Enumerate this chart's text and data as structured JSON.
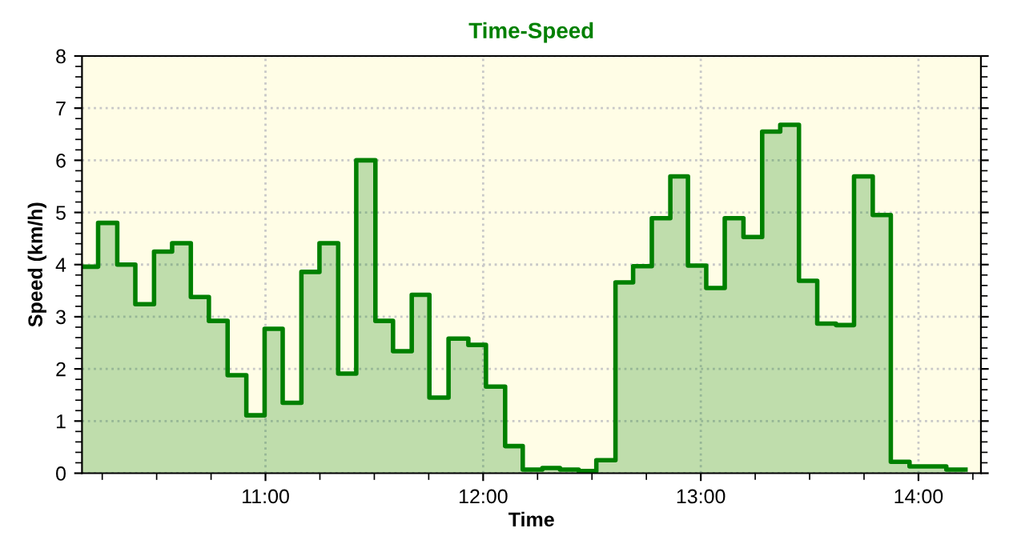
{
  "chart_data": {
    "type": "area",
    "title": "Time-Speed",
    "xlabel": "Time",
    "ylabel": "Speed (km/h)",
    "x": [
      10.157,
      10.231,
      10.231,
      10.319,
      10.319,
      10.402,
      10.402,
      10.488,
      10.488,
      10.571,
      10.571,
      10.657,
      10.657,
      10.74,
      10.74,
      10.826,
      10.826,
      10.912,
      10.912,
      10.996,
      10.996,
      11.079,
      11.079,
      11.165,
      11.165,
      11.248,
      11.248,
      11.334,
      11.334,
      11.417,
      11.417,
      11.505,
      11.505,
      11.586,
      11.586,
      11.672,
      11.672,
      11.753,
      11.753,
      11.841,
      11.841,
      11.932,
      11.932,
      12.013,
      12.013,
      12.101,
      12.101,
      12.182,
      12.182,
      12.272,
      12.272,
      12.353,
      12.353,
      12.439,
      12.439,
      12.52,
      12.52,
      12.608,
      12.608,
      12.689,
      12.689,
      12.775,
      12.775,
      12.86,
      12.86,
      12.941,
      12.941,
      13.025,
      13.025,
      13.11,
      13.11,
      13.196,
      13.196,
      13.282,
      13.282,
      13.365,
      13.365,
      13.451,
      13.451,
      13.535,
      13.535,
      13.621,
      13.621,
      13.704,
      13.704,
      13.79,
      13.79,
      13.873,
      13.873,
      13.959,
      13.959,
      14.042,
      14.042,
      14.128,
      14.128,
      14.216
    ],
    "series": [
      {
        "color": "#008000",
        "values": [
          3.96,
          3.96,
          4.8,
          4.8,
          4.0,
          4.0,
          3.24,
          3.24,
          4.25,
          4.25,
          4.41,
          4.41,
          3.38,
          3.38,
          2.92,
          2.92,
          1.88,
          1.88,
          1.11,
          1.11,
          2.77,
          2.77,
          1.35,
          1.35,
          3.86,
          3.86,
          4.41,
          4.41,
          1.91,
          1.91,
          6.0,
          6.0,
          2.92,
          2.92,
          2.34,
          2.34,
          3.42,
          3.42,
          1.45,
          1.45,
          2.58,
          2.58,
          2.46,
          2.46,
          1.66,
          1.66,
          0.52,
          0.52,
          0.07,
          0.07,
          0.1,
          0.1,
          0.07,
          0.07,
          0.04,
          0.04,
          0.25,
          0.25,
          3.66,
          3.66,
          3.97,
          3.97,
          4.89,
          4.89,
          5.69,
          5.69,
          3.98,
          3.98,
          3.55,
          3.55,
          4.89,
          4.89,
          4.53,
          4.53,
          6.55,
          6.55,
          6.68,
          6.68,
          3.69,
          3.69,
          2.87,
          2.87,
          2.84,
          2.84,
          5.69,
          5.69,
          4.95,
          4.95,
          0.22,
          0.22,
          0.13,
          0.13,
          0.13,
          0.13,
          0.07,
          0.07
        ]
      }
    ],
    "xlim": [
      10.157,
      14.287
    ],
    "ylim": [
      0,
      8
    ],
    "xticks": [
      {
        "value": 11,
        "label": "11:00"
      },
      {
        "value": 12,
        "label": "12:00"
      },
      {
        "value": 13,
        "label": "13:00"
      },
      {
        "value": 14,
        "label": "14:00"
      }
    ],
    "yticks": [
      0,
      1,
      2,
      3,
      4,
      5,
      6,
      7,
      8
    ],
    "grid": true
  }
}
